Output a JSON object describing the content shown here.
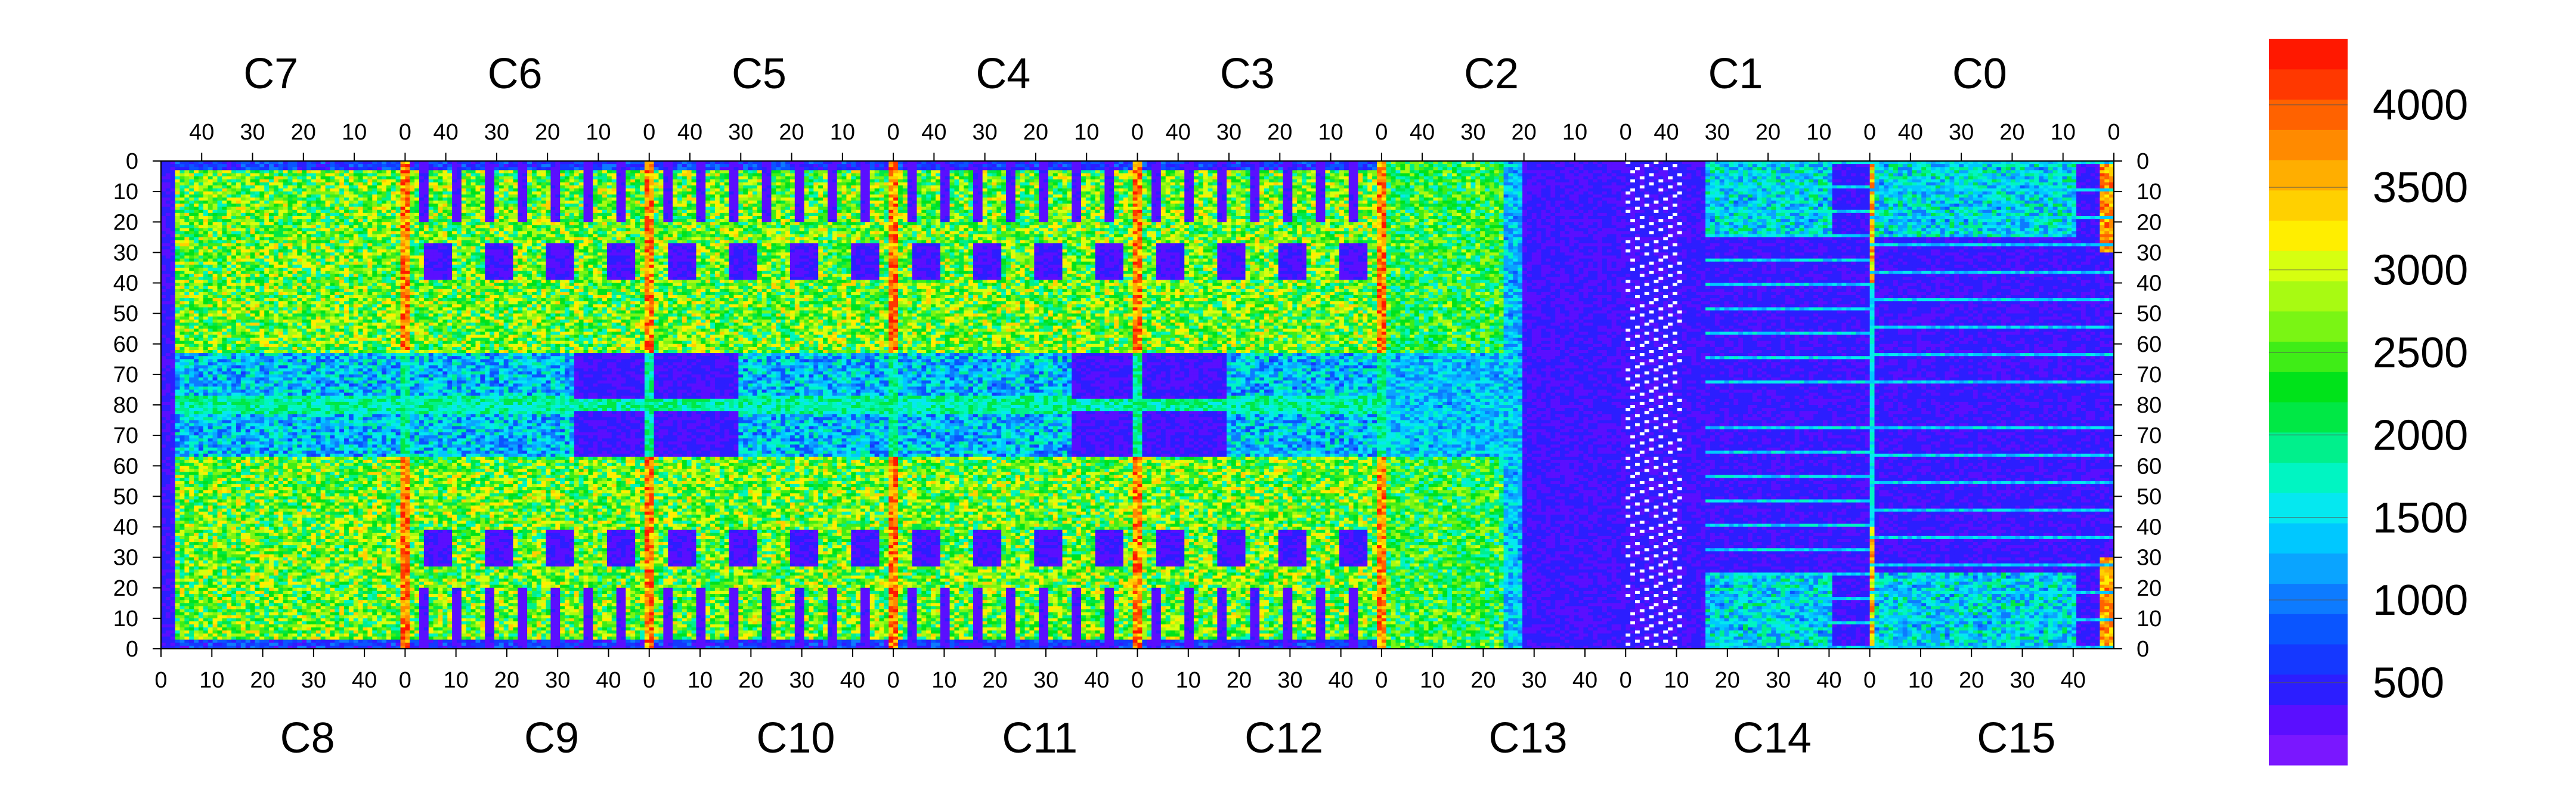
{
  "chart_data": {
    "type": "heatmap",
    "title": "",
    "top_chips": [
      "C7",
      "C6",
      "C5",
      "C4",
      "C3",
      "C2",
      "C1",
      "C0"
    ],
    "bottom_chips": [
      "C8",
      "C9",
      "C10",
      "C11",
      "C12",
      "C13",
      "C14",
      "C15"
    ],
    "x_tick_labels_top": [
      "40",
      "30",
      "20",
      "10",
      "0"
    ],
    "x_tick_labels_bottom": [
      "0",
      "10",
      "20",
      "30",
      "40"
    ],
    "y_tick_labels": [
      "0",
      "10",
      "20",
      "30",
      "40",
      "50",
      "60",
      "70",
      "80",
      "70",
      "60",
      "50",
      "40",
      "30",
      "20",
      "10",
      "0"
    ],
    "columns_per_chip": 52,
    "rows_per_half": 80,
    "zlim": [
      0,
      4400
    ],
    "colorbar": {
      "ticks": [
        500,
        1000,
        1500,
        2000,
        2500,
        3000,
        3500,
        4000
      ],
      "tick_labels": [
        "500",
        "1000",
        "1500",
        "2000",
        "2500",
        "3000",
        "3500",
        "4000"
      ],
      "colors": [
        "#7a17ff",
        "#5a0fff",
        "#2c1eff",
        "#1538ff",
        "#0a55ff",
        "#0d7bff",
        "#0aa4ff",
        "#00c8ff",
        "#05e8f0",
        "#00f5c2",
        "#00f08c",
        "#00e845",
        "#00e31a",
        "#3fed17",
        "#7af514",
        "#a8fa12",
        "#d6ff10",
        "#ffee00",
        "#ffd000",
        "#ffae00",
        "#ff8a00",
        "#ff6200",
        "#ff3800",
        "#ff1800"
      ]
    },
    "legend": "right",
    "grid": false
  }
}
